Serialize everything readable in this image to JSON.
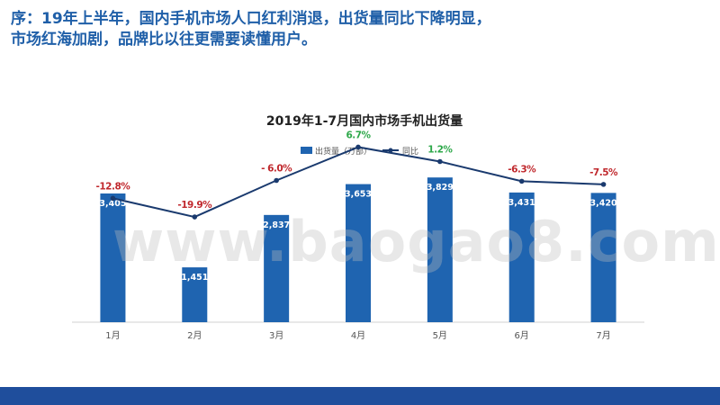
{
  "headline": {
    "line1": "序：19年上半年，国内手机市场人口红利消退，出货量同比下降明显，",
    "line2": "市场红海加剧，品牌比以往更需要读懂用户。"
  },
  "watermark": "www.baogao8.com",
  "chart_data": {
    "type": "bar",
    "title": "2019年1-7月国内市场手机出货量",
    "categories": [
      "1月",
      "2月",
      "3月",
      "4月",
      "5月",
      "6月",
      "7月"
    ],
    "series": [
      {
        "name": "出货量（万部）",
        "type": "bar",
        "values": [
          3405,
          1451,
          2837,
          3653,
          3829,
          3431,
          3420
        ],
        "labels": [
          "3,405",
          "1,451",
          "2,837",
          "3,653",
          "3,829",
          "3,431",
          "3,420"
        ],
        "color": "#1f64b0"
      },
      {
        "name": "同比",
        "type": "line",
        "values": [
          -12.8,
          -19.9,
          -6.0,
          6.7,
          1.2,
          -6.3,
          -7.5
        ],
        "labels": [
          "-12.8%",
          "-19.9%",
          "- 6.0%",
          "6.7%",
          "1.2%",
          "-6.3%",
          "-7.5%"
        ],
        "color": "#1a3a6e"
      }
    ],
    "label_colors": {
      "negative": "#c0282d",
      "positive": "#2ea84a"
    },
    "bar_ylim": [
      0,
      5000
    ],
    "line_ylim": [
      -60,
      12
    ],
    "legend": "top-center",
    "grid": false
  }
}
